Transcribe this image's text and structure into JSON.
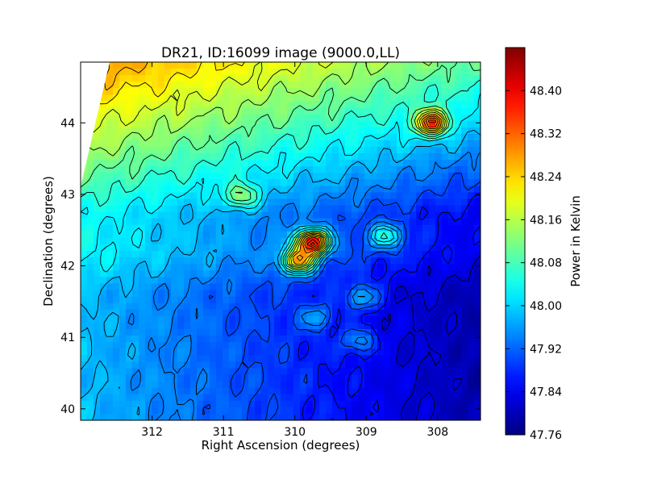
{
  "chart_data": {
    "type": "heatmap",
    "title": "DR21, ID:16099 image (9000.0,LL)",
    "xlabel": "Right Ascension (degrees)",
    "ylabel": "Declination (degrees)",
    "colorbar_label": "Power in Kelvin",
    "xlim": [
      313.0,
      307.4
    ],
    "ylim": [
      39.84,
      44.85
    ],
    "x_ticks": [
      312,
      311,
      310,
      309,
      308
    ],
    "x_tick_labels": [
      "312",
      "311",
      "310",
      "309",
      "308"
    ],
    "y_ticks": [
      40,
      41,
      42,
      43,
      44
    ],
    "y_tick_labels": [
      "40",
      "41",
      "42",
      "43",
      "44"
    ],
    "colorbar_range": [
      47.76,
      48.48
    ],
    "colorbar_ticks": [
      47.76,
      47.84,
      47.92,
      48.0,
      48.08,
      48.16,
      48.24,
      48.32,
      48.4
    ],
    "colorbar_tick_labels": [
      "47.76",
      "47.84",
      "47.92",
      "48.00",
      "48.08",
      "48.16",
      "48.24",
      "48.32",
      "48.40"
    ],
    "colormap": "jet",
    "contours": true,
    "grid": false,
    "sources": [
      {
        "ra": 309.75,
        "dec": 42.33,
        "peak": 48.48
      },
      {
        "ra": 309.95,
        "dec": 42.07,
        "peak": 48.34
      },
      {
        "ra": 308.72,
        "dec": 42.42,
        "peak": 48.14
      },
      {
        "ra": 308.08,
        "dec": 44.0,
        "peak": 48.33
      },
      {
        "ra": 310.75,
        "dec": 42.98,
        "peak": 48.12
      },
      {
        "ra": 309.05,
        "dec": 41.56,
        "peak": 48.1
      },
      {
        "ra": 309.1,
        "dec": 40.95,
        "peak": 48.07
      },
      {
        "ra": 309.7,
        "dec": 41.28,
        "peak": 48.06
      }
    ]
  }
}
